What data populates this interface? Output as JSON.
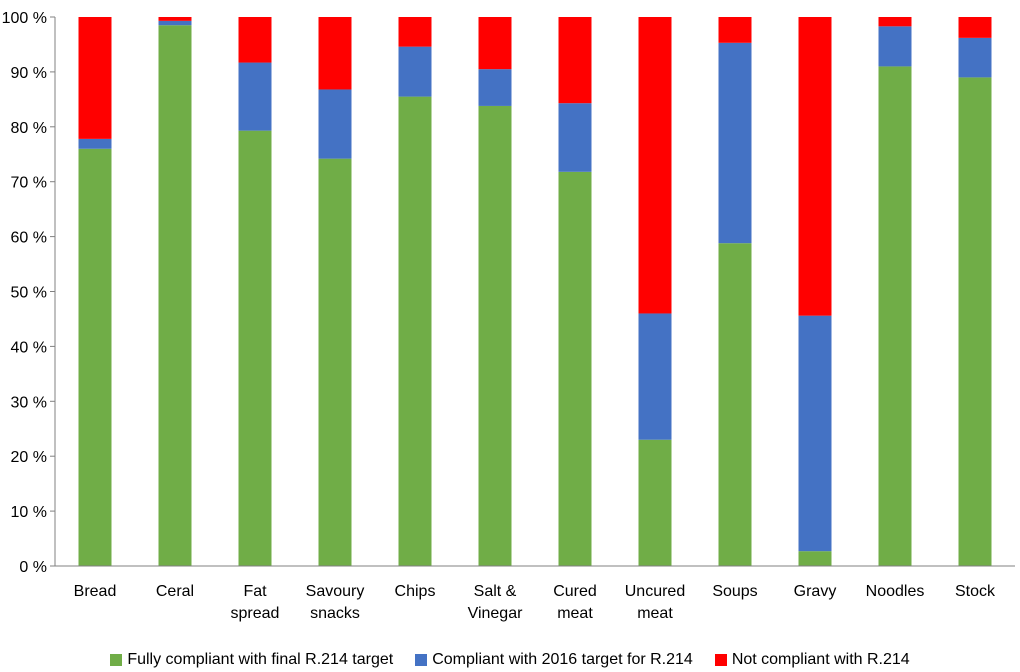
{
  "chart_data": {
    "type": "bar",
    "stacked": true,
    "categories": [
      [
        "Bread"
      ],
      [
        "Ceral"
      ],
      [
        "Fat",
        "spread"
      ],
      [
        "Savoury",
        "snacks"
      ],
      [
        "Chips"
      ],
      [
        "Salt &",
        "Vinegar"
      ],
      [
        "Cured",
        "meat"
      ],
      [
        "Uncured",
        "meat"
      ],
      [
        "Soups"
      ],
      [
        "Gravy"
      ],
      [
        "Noodles"
      ],
      [
        "Stock"
      ]
    ],
    "series": [
      {
        "name": "Fully compliant with final R.214 target",
        "color": "#70ad47",
        "values": [
          76.0,
          98.5,
          79.3,
          74.2,
          85.5,
          83.8,
          71.8,
          23.0,
          58.8,
          2.7,
          91.0,
          89.0
        ]
      },
      {
        "name": "Compliant with 2016 target for R.214",
        "color": "#4472c4",
        "values": [
          1.8,
          0.8,
          12.4,
          12.6,
          9.1,
          6.7,
          12.5,
          23.0,
          36.5,
          42.9,
          7.3,
          7.2
        ]
      },
      {
        "name": "Not compliant with R.214",
        "color": "#ff0000",
        "values": [
          22.2,
          0.7,
          8.3,
          13.2,
          5.4,
          9.5,
          15.7,
          54.0,
          4.7,
          54.4,
          1.7,
          3.8
        ]
      }
    ],
    "y_ticks": [
      "0 %",
      "10 %",
      "20 %",
      "30 %",
      "40 %",
      "50 %",
      "60 %",
      "70 %",
      "80 %",
      "90 %",
      "100 %"
    ],
    "ylim": [
      0,
      100
    ],
    "grid": false,
    "legend_position": "bottom"
  }
}
